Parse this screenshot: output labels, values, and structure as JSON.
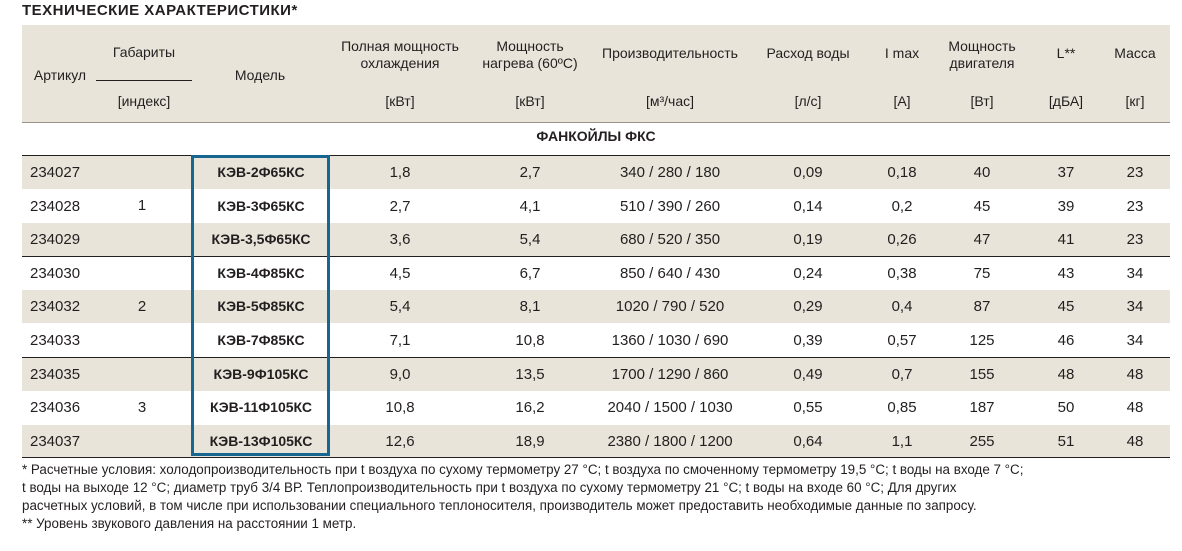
{
  "title": "ТЕХНИЧЕСКИЕ ХАРАКТЕРИСТИКИ*",
  "header": {
    "artikul": "Артикул",
    "gabarity": "Габариты",
    "gabarity_unit": "[индекс]",
    "model": "Модель",
    "cool_l1": "Полная мощность",
    "cool_l2": "охлаждения",
    "cool_unit": "[кВт]",
    "heat_l1": "Мощность",
    "heat_l2": "нагрева (60ºС)",
    "heat_unit": "[кВт]",
    "prod": "Производительность",
    "prod_unit": "[м³/час]",
    "water": "Расход воды",
    "water_unit": "[л/с]",
    "imax": "I max",
    "imax_unit": "[А]",
    "motor_l1": "Мощность",
    "motor_l2": "двигателя",
    "motor_unit": "[Вт]",
    "noise": "L**",
    "noise_unit": "[дБА]",
    "mass": "Масса",
    "mass_unit": "[кг]"
  },
  "section_title": "ФАНКОЙЛЫ ФКС",
  "groups": [
    "1",
    "2",
    "3"
  ],
  "rows": [
    {
      "art": "234027",
      "model": "КЭВ-2Ф65КС",
      "cool": "1,8",
      "heat": "2,7",
      "prod": "340 / 280 / 180",
      "water": "0,09",
      "imax": "0,18",
      "motor": "40",
      "noise": "37",
      "mass": "23"
    },
    {
      "art": "234028",
      "model": "КЭВ-3Ф65КС",
      "cool": "2,7",
      "heat": "4,1",
      "prod": "510 / 390 / 260",
      "water": "0,14",
      "imax": "0,2",
      "motor": "45",
      "noise": "39",
      "mass": "23"
    },
    {
      "art": "234029",
      "model": "КЭВ-3,5Ф65КС",
      "cool": "3,6",
      "heat": "5,4",
      "prod": "680 / 520 / 350",
      "water": "0,19",
      "imax": "0,26",
      "motor": "47",
      "noise": "41",
      "mass": "23"
    },
    {
      "art": "234030",
      "model": "КЭВ-4Ф85КС",
      "cool": "4,5",
      "heat": "6,7",
      "prod": "850 / 640 / 430",
      "water": "0,24",
      "imax": "0,38",
      "motor": "75",
      "noise": "43",
      "mass": "34"
    },
    {
      "art": "234032",
      "model": "КЭВ-5Ф85КС",
      "cool": "5,4",
      "heat": "8,1",
      "prod": "1020 / 790 / 520",
      "water": "0,29",
      "imax": "0,4",
      "motor": "87",
      "noise": "45",
      "mass": "34"
    },
    {
      "art": "234033",
      "model": "КЭВ-7Ф85КС",
      "cool": "7,1",
      "heat": "10,8",
      "prod": "1360 / 1030 / 690",
      "water": "0,39",
      "imax": "0,57",
      "motor": "125",
      "noise": "46",
      "mass": "34"
    },
    {
      "art": "234035",
      "model": "КЭВ-9Ф105КС",
      "cool": "9,0",
      "heat": "13,5",
      "prod": "1700 / 1290 / 860",
      "water": "0,49",
      "imax": "0,7",
      "motor": "155",
      "noise": "48",
      "mass": "48"
    },
    {
      "art": "234036",
      "model": "КЭВ-11Ф105КС",
      "cool": "10,8",
      "heat": "16,2",
      "prod": "2040 / 1500 / 1030",
      "water": "0,55",
      "imax": "0,85",
      "motor": "187",
      "noise": "50",
      "mass": "48"
    },
    {
      "art": "234037",
      "model": "КЭВ-13Ф105КС",
      "cool": "12,6",
      "heat": "18,9",
      "prod": "2380 / 1800 / 1200",
      "water": "0,64",
      "imax": "1,1",
      "motor": "255",
      "noise": "51",
      "mass": "48"
    }
  ],
  "footnotes": {
    "line1": "* Расчетные условия: холодопроизводительность при t воздуха по сухому термометру 27 °С; t воздуха по смоченному термометру 19,5 °С; t воды на входе 7 °С;",
    "line2": "t воды на выходе 12 °С; диаметр труб 3/4 ВР. Теплопроизводительность при t воздуха по сухому термометру 21 °С; t воды на входе 60 °С; Для других",
    "line3": "расчетных условий, в том числе при использовании специального теплоносителя, производитель  может предоставить необходимые данные по запросу.",
    "line4": "**  Уровень звукового давления на расстоянии 1 метр."
  },
  "colors": {
    "header_bg": "#e8e4d9",
    "row_shade": "#e8e4d9",
    "model_border": "#17668f",
    "text": "#231f20"
  }
}
